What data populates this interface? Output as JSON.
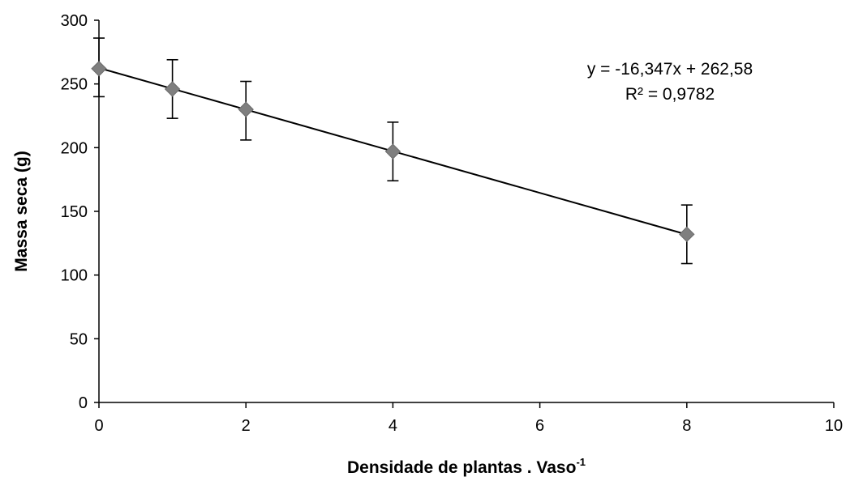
{
  "chart_data": {
    "type": "scatter",
    "title": "",
    "xlabel": "Densidade de plantas . Vaso",
    "xlabel_superscript": "-1",
    "ylabel": "Massa seca (g)",
    "xlim": [
      0,
      10
    ],
    "ylim": [
      0,
      300
    ],
    "x_ticks": [
      "0",
      "2",
      "4",
      "6",
      "8",
      "10"
    ],
    "y_ticks": [
      "0",
      "50",
      "100",
      "150",
      "200",
      "250",
      "300"
    ],
    "x_tick_values": [
      0,
      2,
      4,
      6,
      8,
      10
    ],
    "y_tick_values": [
      0,
      50,
      100,
      150,
      200,
      250,
      300
    ],
    "grid": false,
    "marker_color": "#7f7f7f",
    "points": [
      {
        "x": 0,
        "y": 262,
        "err_low": 240,
        "err_high": 286
      },
      {
        "x": 1,
        "y": 246,
        "err_low": 223,
        "err_high": 269
      },
      {
        "x": 2,
        "y": 230,
        "err_low": 206,
        "err_high": 252
      },
      {
        "x": 4,
        "y": 197,
        "err_low": 174,
        "err_high": 220
      },
      {
        "x": 8,
        "y": 132,
        "err_low": 109,
        "err_high": 155
      }
    ],
    "trendline": {
      "slope": -16.347,
      "intercept": 262.58,
      "x_range": [
        0,
        8
      ]
    },
    "equation": "y = -16,347x + 262,58",
    "r_squared": "R² = 0,9782"
  }
}
